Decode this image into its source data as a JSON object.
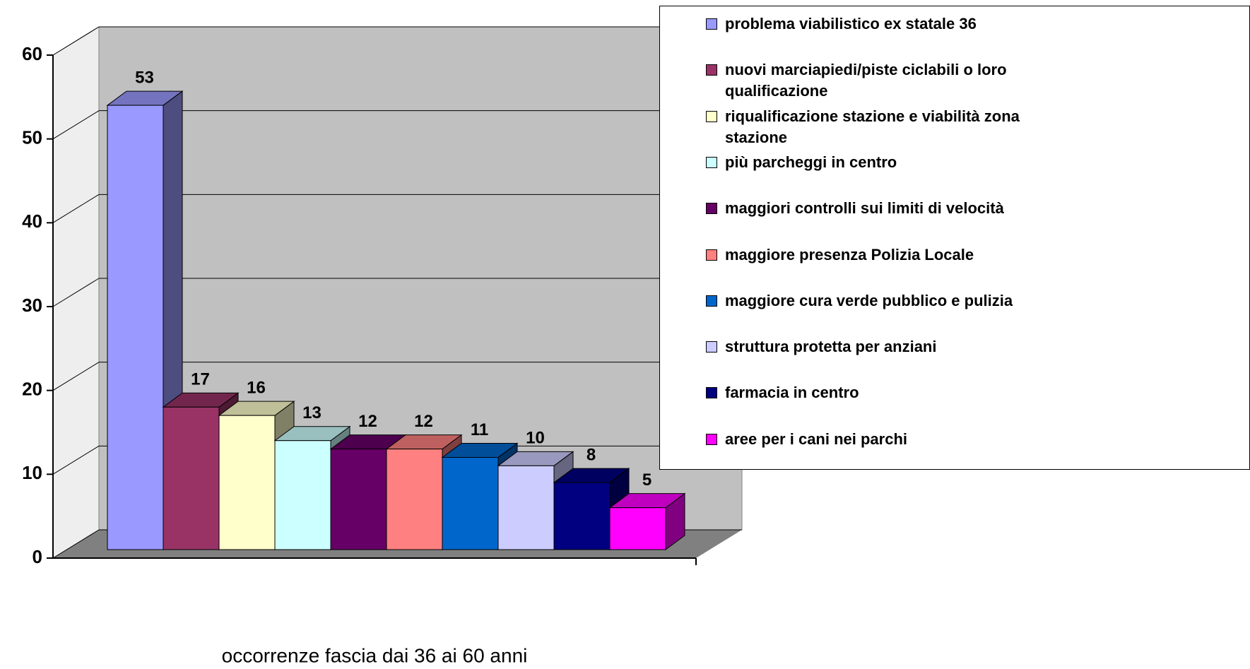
{
  "chart_data": {
    "type": "bar",
    "categories": [
      "occorrenze fascia dai 36 ai 60 anni"
    ],
    "series": [
      {
        "name": "problema viabilistico ex statale 36",
        "color": "#9999ff",
        "values": [
          53
        ]
      },
      {
        "name": "nuovi marciapiedi/piste ciclabili o loro qualificazione",
        "color": "#993366",
        "values": [
          17
        ]
      },
      {
        "name": "riqualificazione stazione e viabilità zona stazione",
        "color": "#ffffcc",
        "values": [
          16
        ]
      },
      {
        "name": "più parcheggi in centro",
        "color": "#ccffff",
        "values": [
          13
        ]
      },
      {
        "name": "maggiori controlli sui limiti di velocità",
        "color": "#660066",
        "values": [
          12
        ]
      },
      {
        "name": "maggiore presenza Polizia Locale",
        "color": "#ff8080",
        "values": [
          12
        ]
      },
      {
        "name": "maggiore cura verde pubblico e pulizia",
        "color": "#0066cc",
        "values": [
          11
        ]
      },
      {
        "name": "struttura protetta per anziani",
        "color": "#ccccff",
        "values": [
          10
        ]
      },
      {
        "name": "farmacia in centro",
        "color": "#000080",
        "values": [
          8
        ]
      },
      {
        "name": "aree per i cani nei parchi",
        "color": "#ff00ff",
        "values": [
          5
        ]
      }
    ],
    "ylim": [
      0,
      60
    ],
    "yticks": [
      0,
      10,
      20,
      30,
      40,
      50,
      60
    ],
    "grid": true,
    "legend": "right"
  }
}
